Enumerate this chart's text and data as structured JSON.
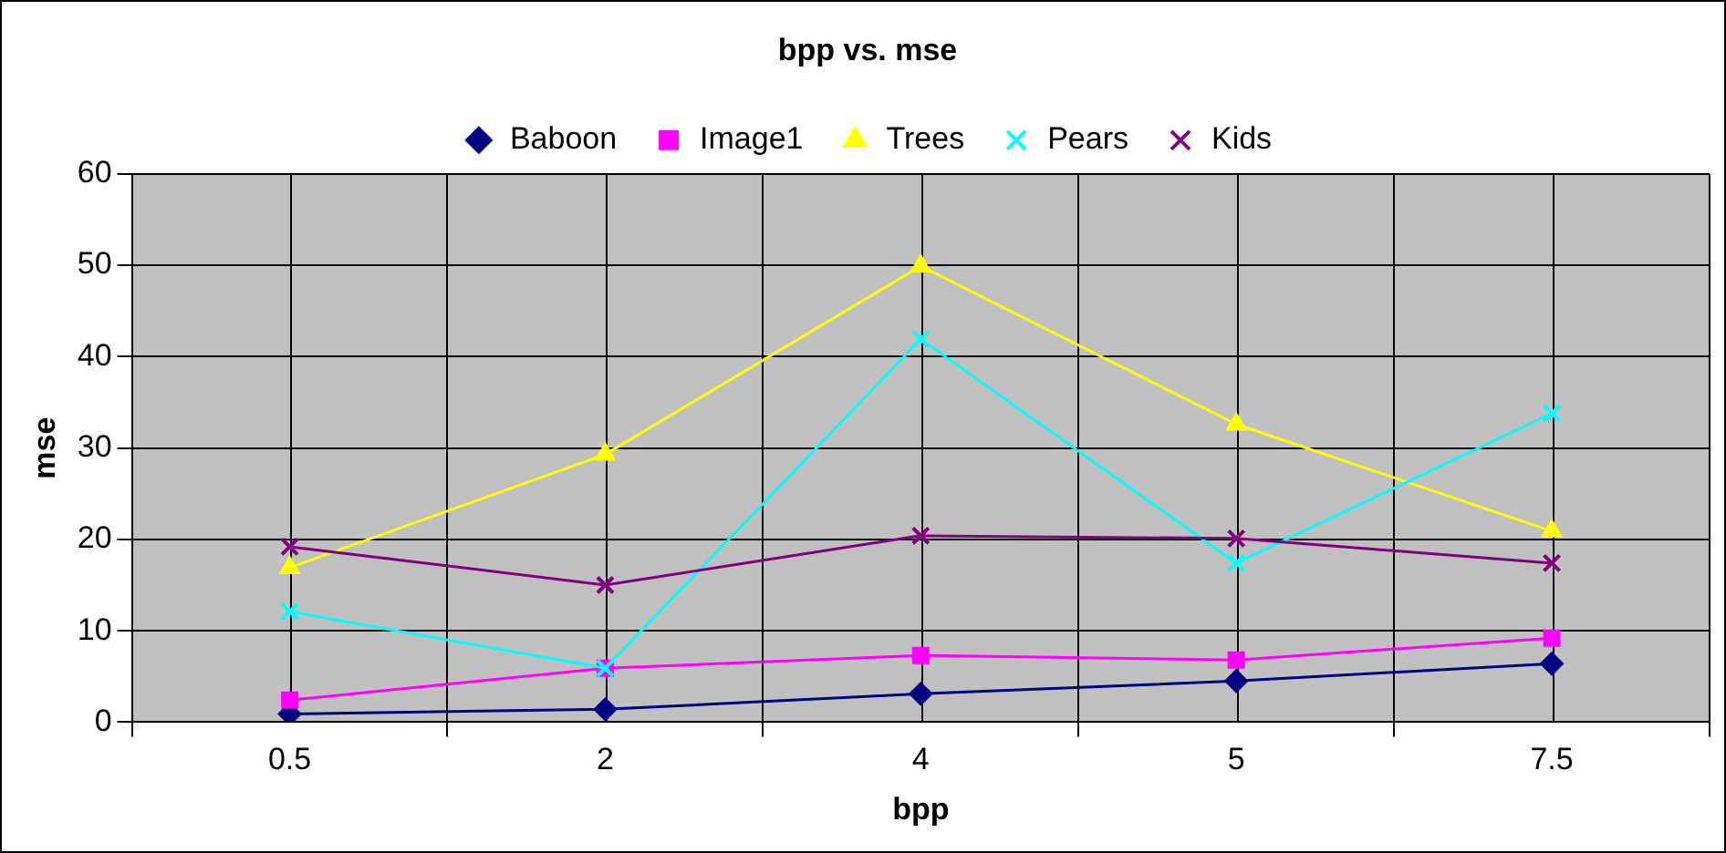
{
  "chart_data": {
    "type": "line",
    "title": "bpp vs. mse",
    "xlabel": "bpp",
    "ylabel": "mse",
    "categories": [
      "0.5",
      "2",
      "4",
      "5",
      "7.5"
    ],
    "series": [
      {
        "name": "Baboon",
        "color": "#000080",
        "marker": "diamond",
        "values": [
          0.9,
          1.4,
          3.1,
          4.5,
          6.4
        ]
      },
      {
        "name": "Image1",
        "color": "#ff00ff",
        "marker": "square",
        "values": [
          2.4,
          5.9,
          7.3,
          6.8,
          9.2
        ]
      },
      {
        "name": "Trees",
        "color": "#ffff00",
        "marker": "triangle",
        "values": [
          16.9,
          29.3,
          49.9,
          32.6,
          20.9
        ]
      },
      {
        "name": "Pears",
        "color": "#00ffff",
        "marker": "cross",
        "values": [
          12.1,
          5.9,
          41.9,
          17.4,
          33.8
        ]
      },
      {
        "name": "Kids",
        "color": "#800080",
        "marker": "cross",
        "values": [
          19.2,
          15.0,
          20.4,
          20.1,
          17.4
        ]
      }
    ],
    "ylim": [
      0,
      60
    ],
    "yticks": [
      0,
      10,
      20,
      30,
      40,
      50,
      60
    ],
    "grid": true,
    "legend": "top"
  }
}
